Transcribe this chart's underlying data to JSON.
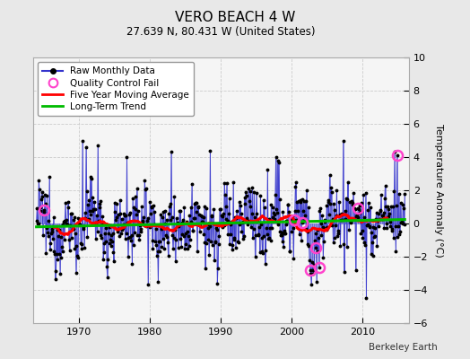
{
  "title": "VERO BEACH 4 W",
  "subtitle": "27.639 N, 80.431 W (United States)",
  "ylabel": "Temperature Anomaly (°C)",
  "credit": "Berkeley Earth",
  "xlim": [
    1963.5,
    2016.5
  ],
  "ylim": [
    -6,
    10
  ],
  "yticks": [
    -6,
    -4,
    -2,
    0,
    2,
    4,
    6,
    8,
    10
  ],
  "xticks": [
    1970,
    1980,
    1990,
    2000,
    2010
  ],
  "bg_color": "#e8e8e8",
  "plot_bg_color": "#f5f5f5",
  "raw_line_color": "#3333cc",
  "raw_marker_color": "#000000",
  "moving_avg_color": "#ff0000",
  "trend_color": "#00bb00",
  "qc_fail_color": "#ff44cc",
  "grid_color": "#cccccc"
}
